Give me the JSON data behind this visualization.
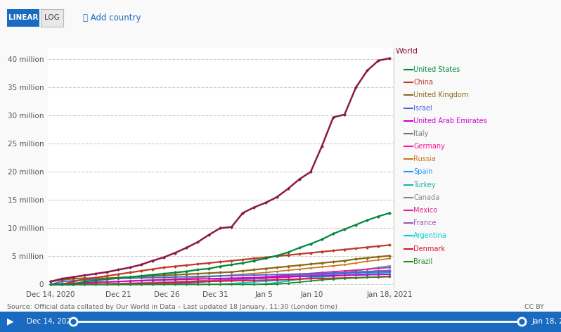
{
  "background_color": "#f9f9f9",
  "plot_bg_color": "#ffffff",
  "grid_color": "#cccccc",
  "x_tick_labels": [
    "Dec 14, 2020",
    "Dec 21",
    "Dec 26",
    "Dec 31",
    "Jan 5",
    "Jan 10",
    "Jan 18, 2021"
  ],
  "x_tick_days": [
    0,
    7,
    12,
    17,
    22,
    27,
    35
  ],
  "y_ticks": [
    0,
    5000000,
    10000000,
    15000000,
    20000000,
    25000000,
    30000000,
    35000000,
    40000000
  ],
  "y_tick_labels": [
    "0",
    "5 million",
    "10 million",
    "15 million",
    "20 million",
    "25 million",
    "30 million",
    "35 million",
    "40 million"
  ],
  "source_text": "Source: Official data collated by Our World in Data – Last updated 18 January, 11:30 (London time)",
  "cc_text": "CC BY",
  "series": [
    {
      "name": "World",
      "color": "#8B1A4A",
      "linewidth": 1.8,
      "marker": "D",
      "markersize": 2.5,
      "zorder": 10,
      "values": [
        500000,
        1000000,
        1300000,
        1600000,
        1900000,
        2200000,
        2600000,
        3000000,
        3500000,
        4200000,
        4800000,
        5600000,
        6500000,
        7500000,
        8800000,
        10000000,
        10200000,
        12700000,
        13700000,
        14500000,
        15500000,
        17000000,
        18700000,
        20000000,
        24600000,
        29700000,
        30200000,
        35000000,
        38000000,
        39800000,
        40200000
      ]
    },
    {
      "name": "United States",
      "color": "#00883B",
      "linewidth": 1.6,
      "marker": "D",
      "markersize": 2.5,
      "zorder": 9,
      "values": [
        0,
        0,
        0,
        500000,
        700000,
        900000,
        1100000,
        1300000,
        1500000,
        1700000,
        1900000,
        2100000,
        2300000,
        2600000,
        2800000,
        3200000,
        3500000,
        3800000,
        4200000,
        4600000,
        5100000,
        5700000,
        6500000,
        7200000,
        8000000,
        9000000,
        9800000,
        10600000,
        11400000,
        12100000,
        12700000
      ]
    },
    {
      "name": "China",
      "color": "#C0392B",
      "linewidth": 1.6,
      "marker": "D",
      "markersize": 2.5,
      "zorder": 8,
      "values": [
        0,
        0,
        500000,
        900000,
        1200000,
        1500000,
        1800000,
        2100000,
        2400000,
        2700000,
        3000000,
        3200000,
        3400000,
        3600000,
        3800000,
        4000000,
        4200000,
        4400000,
        4600000,
        4800000,
        5000000,
        5200000,
        5400000,
        5600000,
        5800000,
        6000000,
        6200000,
        6400000,
        6600000,
        6800000,
        7000000
      ]
    },
    {
      "name": "United Kingdom",
      "color": "#8B6914",
      "linewidth": 1.6,
      "marker": "D",
      "markersize": 2.5,
      "zorder": 7,
      "values": [
        500000,
        800000,
        1000000,
        1100000,
        1100000,
        1100000,
        1200000,
        1300000,
        1400000,
        1500000,
        1600000,
        1700000,
        1800000,
        1900000,
        2000000,
        2100000,
        2200000,
        2400000,
        2600000,
        2800000,
        3000000,
        3200000,
        3400000,
        3600000,
        3800000,
        4000000,
        4200000,
        4500000,
        4700000,
        4900000,
        5100000
      ]
    },
    {
      "name": "Israel",
      "color": "#4169E1",
      "linewidth": 1.4,
      "marker": "D",
      "markersize": 2,
      "zorder": 6,
      "values": [
        0,
        500000,
        650000,
        800000,
        900000,
        1000000,
        1050000,
        1100000,
        1150000,
        1200000,
        1250000,
        1300000,
        1350000,
        1400000,
        1450000,
        1500000,
        1550000,
        1600000,
        1650000,
        1700000,
        1750000,
        1800000,
        1850000,
        1900000,
        1950000,
        2000000,
        2050000,
        2100000,
        2150000,
        2200000,
        2250000
      ]
    },
    {
      "name": "United Arab Emirates",
      "color": "#CC00CC",
      "linewidth": 1.4,
      "marker": "D",
      "markersize": 2,
      "zorder": 6,
      "values": [
        0,
        100000,
        200000,
        300000,
        380000,
        450000,
        520000,
        590000,
        660000,
        720000,
        780000,
        840000,
        900000,
        950000,
        1000000,
        1050000,
        1100000,
        1150000,
        1200000,
        1250000,
        1300000,
        1350000,
        1400000,
        1450000,
        1500000,
        1550000,
        1600000,
        1650000,
        1700000,
        1750000,
        1800000
      ]
    },
    {
      "name": "Italy",
      "color": "#777777",
      "linewidth": 1.3,
      "marker": "D",
      "markersize": 2,
      "zorder": 5,
      "values": [
        0,
        0,
        0,
        0,
        0,
        50000,
        100000,
        150000,
        200000,
        280000,
        360000,
        440000,
        520000,
        600000,
        700000,
        780000,
        860000,
        940000,
        1020000,
        1100000,
        1200000,
        1310000,
        1420000,
        1530000,
        1640000,
        1760000,
        1880000,
        2000000,
        2150000,
        2300000,
        2450000
      ]
    },
    {
      "name": "Germany",
      "color": "#FF1493",
      "linewidth": 1.3,
      "marker": "D",
      "markersize": 2,
      "zorder": 5,
      "values": [
        0,
        0,
        0,
        0,
        0,
        0,
        0,
        0,
        0,
        100000,
        200000,
        300000,
        400000,
        500000,
        600000,
        700000,
        800000,
        900000,
        1000000,
        1100000,
        1200000,
        1350000,
        1500000,
        1650000,
        1800000,
        1950000,
        2050000,
        2150000,
        2250000,
        2350000,
        2450000
      ]
    },
    {
      "name": "Russia",
      "color": "#CC7722",
      "linewidth": 1.3,
      "marker": "D",
      "markersize": 2,
      "zorder": 5,
      "values": [
        0,
        50000,
        100000,
        200000,
        300000,
        400000,
        500000,
        600000,
        700000,
        800000,
        900000,
        1000000,
        1100000,
        1200000,
        1350000,
        1500000,
        1650000,
        1800000,
        1950000,
        2100000,
        2300000,
        2500000,
        2700000,
        2900000,
        3100000,
        3300000,
        3500000,
        3800000,
        4100000,
        4350000,
        4600000
      ]
    },
    {
      "name": "Spain",
      "color": "#1E90FF",
      "linewidth": 1.3,
      "marker": "D",
      "markersize": 2,
      "zorder": 5,
      "values": [
        0,
        0,
        0,
        0,
        0,
        0,
        0,
        50000,
        120000,
        200000,
        290000,
        380000,
        470000,
        560000,
        660000,
        760000,
        870000,
        980000,
        1090000,
        1200000,
        1310000,
        1430000,
        1560000,
        1700000,
        1850000,
        2000000,
        2100000,
        2200000,
        2300000,
        2400000,
        2500000
      ]
    },
    {
      "name": "Turkey",
      "color": "#20B2AA",
      "linewidth": 1.3,
      "marker": "D",
      "markersize": 2,
      "zorder": 5,
      "values": [
        0,
        0,
        0,
        0,
        0,
        0,
        0,
        0,
        0,
        0,
        0,
        0,
        0,
        0,
        0,
        0,
        0,
        0,
        0,
        100000,
        300000,
        600000,
        900000,
        1200000,
        1500000,
        1800000,
        2100000,
        2400000,
        2700000,
        3000000,
        3300000
      ]
    },
    {
      "name": "Canada",
      "color": "#888888",
      "linewidth": 1.3,
      "marker": "D",
      "markersize": 2,
      "zorder": 5,
      "values": [
        0,
        0,
        0,
        0,
        50000,
        100000,
        160000,
        220000,
        280000,
        340000,
        400000,
        470000,
        540000,
        620000,
        700000,
        800000,
        900000,
        1000000,
        1100000,
        1200000,
        1320000,
        1440000,
        1560000,
        1680000,
        1800000,
        1950000,
        2050000,
        2150000,
        2250000,
        2350000,
        2450000
      ]
    },
    {
      "name": "Mexico",
      "color": "#E91E8C",
      "linewidth": 1.3,
      "marker": "D",
      "markersize": 2,
      "zorder": 5,
      "values": [
        0,
        0,
        0,
        0,
        0,
        0,
        0,
        0,
        0,
        0,
        50000,
        150000,
        250000,
        380000,
        520000,
        680000,
        840000,
        1000000,
        1160000,
        1320000,
        1480000,
        1640000,
        1800000,
        1960000,
        2100000,
        2250000,
        2400000,
        2550000,
        2700000,
        2850000,
        3000000
      ]
    },
    {
      "name": "France",
      "color": "#9B59B6",
      "linewidth": 1.3,
      "marker": "D",
      "markersize": 2,
      "zorder": 5,
      "values": [
        0,
        0,
        0,
        0,
        0,
        0,
        0,
        0,
        20000,
        60000,
        120000,
        200000,
        300000,
        420000,
        540000,
        660000,
        780000,
        900000,
        1020000,
        1140000,
        1260000,
        1380000,
        1500000,
        1640000,
        1800000,
        1950000,
        2050000,
        2150000,
        2250000,
        2350000,
        2450000
      ]
    },
    {
      "name": "Argentina",
      "color": "#00CED1",
      "linewidth": 1.3,
      "marker": "D",
      "markersize": 2,
      "zorder": 5,
      "values": [
        0,
        0,
        0,
        0,
        0,
        0,
        0,
        0,
        0,
        0,
        0,
        0,
        0,
        0,
        0,
        50000,
        150000,
        280000,
        420000,
        560000,
        700000,
        850000,
        1000000,
        1150000,
        1300000,
        1450000,
        1600000,
        1750000,
        1900000,
        2000000,
        2100000
      ]
    },
    {
      "name": "Denmark",
      "color": "#DC143C",
      "linewidth": 1.3,
      "marker": "D",
      "markersize": 2,
      "zorder": 5,
      "values": [
        0,
        0,
        0,
        10000,
        30000,
        60000,
        90000,
        130000,
        170000,
        220000,
        270000,
        330000,
        390000,
        450000,
        510000,
        560000,
        610000,
        660000,
        710000,
        760000,
        820000,
        880000,
        940000,
        1000000,
        1050000,
        1100000,
        1150000,
        1200000,
        1250000,
        1300000,
        1350000
      ]
    },
    {
      "name": "Brazil",
      "color": "#228B22",
      "linewidth": 1.3,
      "marker": "D",
      "markersize": 2,
      "zorder": 5,
      "values": [
        0,
        0,
        0,
        0,
        0,
        0,
        0,
        0,
        0,
        0,
        0,
        0,
        0,
        0,
        0,
        0,
        0,
        0,
        0,
        0,
        50000,
        200000,
        400000,
        600000,
        800000,
        950000,
        1050000,
        1150000,
        1250000,
        1350000,
        1450000
      ]
    }
  ],
  "legend_order": [
    "United States",
    "China",
    "United Kingdom",
    "Israel",
    "United Arab Emirates",
    "Italy",
    "Germany",
    "Russia",
    "Spain",
    "Turkey",
    "Canada",
    "Mexico",
    "France",
    "Argentina",
    "Denmark",
    "Brazil"
  ],
  "legend_colors": {
    "United States": "#00883B",
    "China": "#C0392B",
    "United Kingdom": "#8B6914",
    "Israel": "#4169E1",
    "United Arab Emirates": "#CC00CC",
    "Italy": "#777777",
    "Germany": "#FF1493",
    "Russia": "#CC7722",
    "Spain": "#1E90FF",
    "Turkey": "#20B2AA",
    "Canada": "#888888",
    "Mexico": "#E91E8C",
    "France": "#9B59B6",
    "Argentina": "#00CED1",
    "Denmark": "#DC143C",
    "Brazil": "#228B22"
  }
}
